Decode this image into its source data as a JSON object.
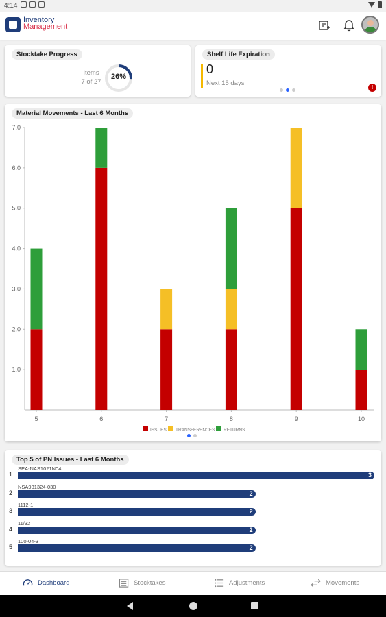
{
  "status": {
    "time": "4:14"
  },
  "app": {
    "logo_line1": "Inventory",
    "logo_line2": "Management"
  },
  "stocktake": {
    "title": "Stocktake Progress",
    "items_label": "Items",
    "items_value": "7 of 27",
    "percent_label": "26%",
    "percent": 0.26
  },
  "shelf": {
    "title": "Shelf Life Expiration",
    "count": "0",
    "subtitle": "Next 15 days",
    "alert": "!"
  },
  "movements": {
    "title": "Material Movements - Last 6 Months"
  },
  "chart_data": {
    "type": "bar",
    "stacked": true,
    "categories": [
      "5",
      "6",
      "7",
      "8",
      "9",
      "10"
    ],
    "series": [
      {
        "name": "ISSUES",
        "color": "#c40000",
        "values": [
          2,
          6,
          2,
          2,
          5,
          1
        ]
      },
      {
        "name": "TRANSFERENCES",
        "color": "#f5bf26",
        "values": [
          0,
          0,
          1,
          1,
          2,
          0
        ]
      },
      {
        "name": "RETURNS",
        "color": "#2e9e3a",
        "values": [
          2,
          1,
          0,
          2,
          0,
          1
        ]
      }
    ],
    "ylim": [
      0,
      7
    ],
    "yticks": [
      "1.0",
      "2.0",
      "3.0",
      "4.0",
      "5.0",
      "6.0",
      "7.0"
    ],
    "legend_position": "bottom"
  },
  "top_pn": {
    "title": "Top 5 of PN Issues - Last 6 Months",
    "max": 3,
    "items": [
      {
        "rank": "1",
        "name": "SEA-NAS1021N04",
        "value": 3
      },
      {
        "rank": "2",
        "name": "NSA931324-030",
        "value": 2
      },
      {
        "rank": "3",
        "name": "1112-1",
        "value": 2
      },
      {
        "rank": "4",
        "name": "11/32",
        "value": 2
      },
      {
        "rank": "5",
        "name": "100-04-3",
        "value": 2
      }
    ]
  },
  "nav": {
    "dashboard": "Dashboard",
    "stocktakes": "Stocktakes",
    "adjustments": "Adjustments",
    "movements": "Movements"
  }
}
